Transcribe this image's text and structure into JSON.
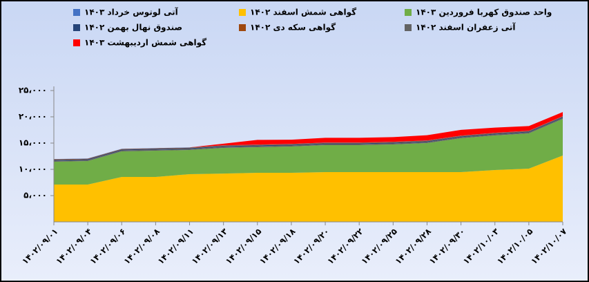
{
  "chart_data": {
    "type": "stacked_area",
    "categories": [
      "۱۴۰۲/۰۹/۰۱",
      "۱۴۰۲/۰۹/۰۴",
      "۱۴۰۲/۰۹/۰۶",
      "۱۴۰۲/۰۹/۰۸",
      "۱۴۰۲/۰۹/۱۱",
      "۱۴۰۲/۰۹/۱۳",
      "۱۴۰۲/۰۹/۱۵",
      "۱۴۰۲/۰۹/۱۸",
      "۱۴۰۲/۰۹/۲۰",
      "۱۴۰۲/۰۹/۲۲",
      "۱۴۰۲/۰۹/۲۵",
      "۱۴۰۲/۰۹/۲۸",
      "۱۴۰۲/۰۹/۳۰",
      "۱۴۰۲/۱۰/۰۳",
      "۱۴۰۲/۱۰/۰۵",
      "۱۴۰۲/۱۰/۰۷"
    ],
    "series": [
      {
        "name": "آتی لوتوس خرداد ۱۴۰۳",
        "color": "#4472c4",
        "values": [
          50,
          50,
          50,
          50,
          50,
          50,
          50,
          50,
          50,
          50,
          50,
          50,
          50,
          50,
          50,
          50
        ]
      },
      {
        "name": "گواهی شمش اسفند ۱۴۰۲",
        "color": "#ffc000",
        "values": [
          7100,
          7100,
          8550,
          8550,
          9080,
          9200,
          9340,
          9340,
          9470,
          9470,
          9470,
          9470,
          9470,
          9870,
          10130,
          12630
        ]
      },
      {
        "name": "واحد صندوق کهربا فروردین ۱۴۰۳",
        "color": "#70ad47",
        "values": [
          4350,
          4480,
          4870,
          5000,
          4600,
          4880,
          4870,
          5000,
          5130,
          5130,
          5270,
          5530,
          6450,
          6580,
          6710,
          6980
        ]
      },
      {
        "name": "صندوق نهال بهمن ۱۴۰۲",
        "color": "#264478",
        "values": [
          150,
          150,
          150,
          150,
          150,
          150,
          150,
          150,
          150,
          150,
          150,
          150,
          150,
          150,
          150,
          150
        ]
      },
      {
        "name": "گواهی سکه دی ۱۴۰۲",
        "color": "#9e480e",
        "values": [
          100,
          100,
          100,
          100,
          100,
          100,
          100,
          100,
          100,
          100,
          100,
          100,
          100,
          100,
          100,
          100
        ]
      },
      {
        "name": "آتی زعفران اسفند ۱۴۰۲",
        "color": "#636363",
        "values": [
          200,
          200,
          200,
          200,
          200,
          200,
          200,
          200,
          200,
          200,
          200,
          200,
          200,
          200,
          200,
          200
        ]
      },
      {
        "name": "گواهی شمش اردیبهشت ۱۴۰۳",
        "color": "#ff0000",
        "values": [
          0,
          0,
          0,
          0,
          0,
          300,
          900,
          800,
          900,
          900,
          900,
          1000,
          1100,
          1000,
          900,
          800
        ]
      }
    ],
    "ylim": [
      0,
      25000
    ],
    "yticks": [
      {
        "value": 5000,
        "label": "۵،۰۰۰"
      },
      {
        "value": 10000,
        "label": "۱۰،۰۰۰"
      },
      {
        "value": 15000,
        "label": "۱۵،۰۰۰"
      },
      {
        "value": 20000,
        "label": "۲۰،۰۰۰"
      },
      {
        "value": 25000,
        "label": "۲۵،۰۰۰"
      }
    ]
  }
}
